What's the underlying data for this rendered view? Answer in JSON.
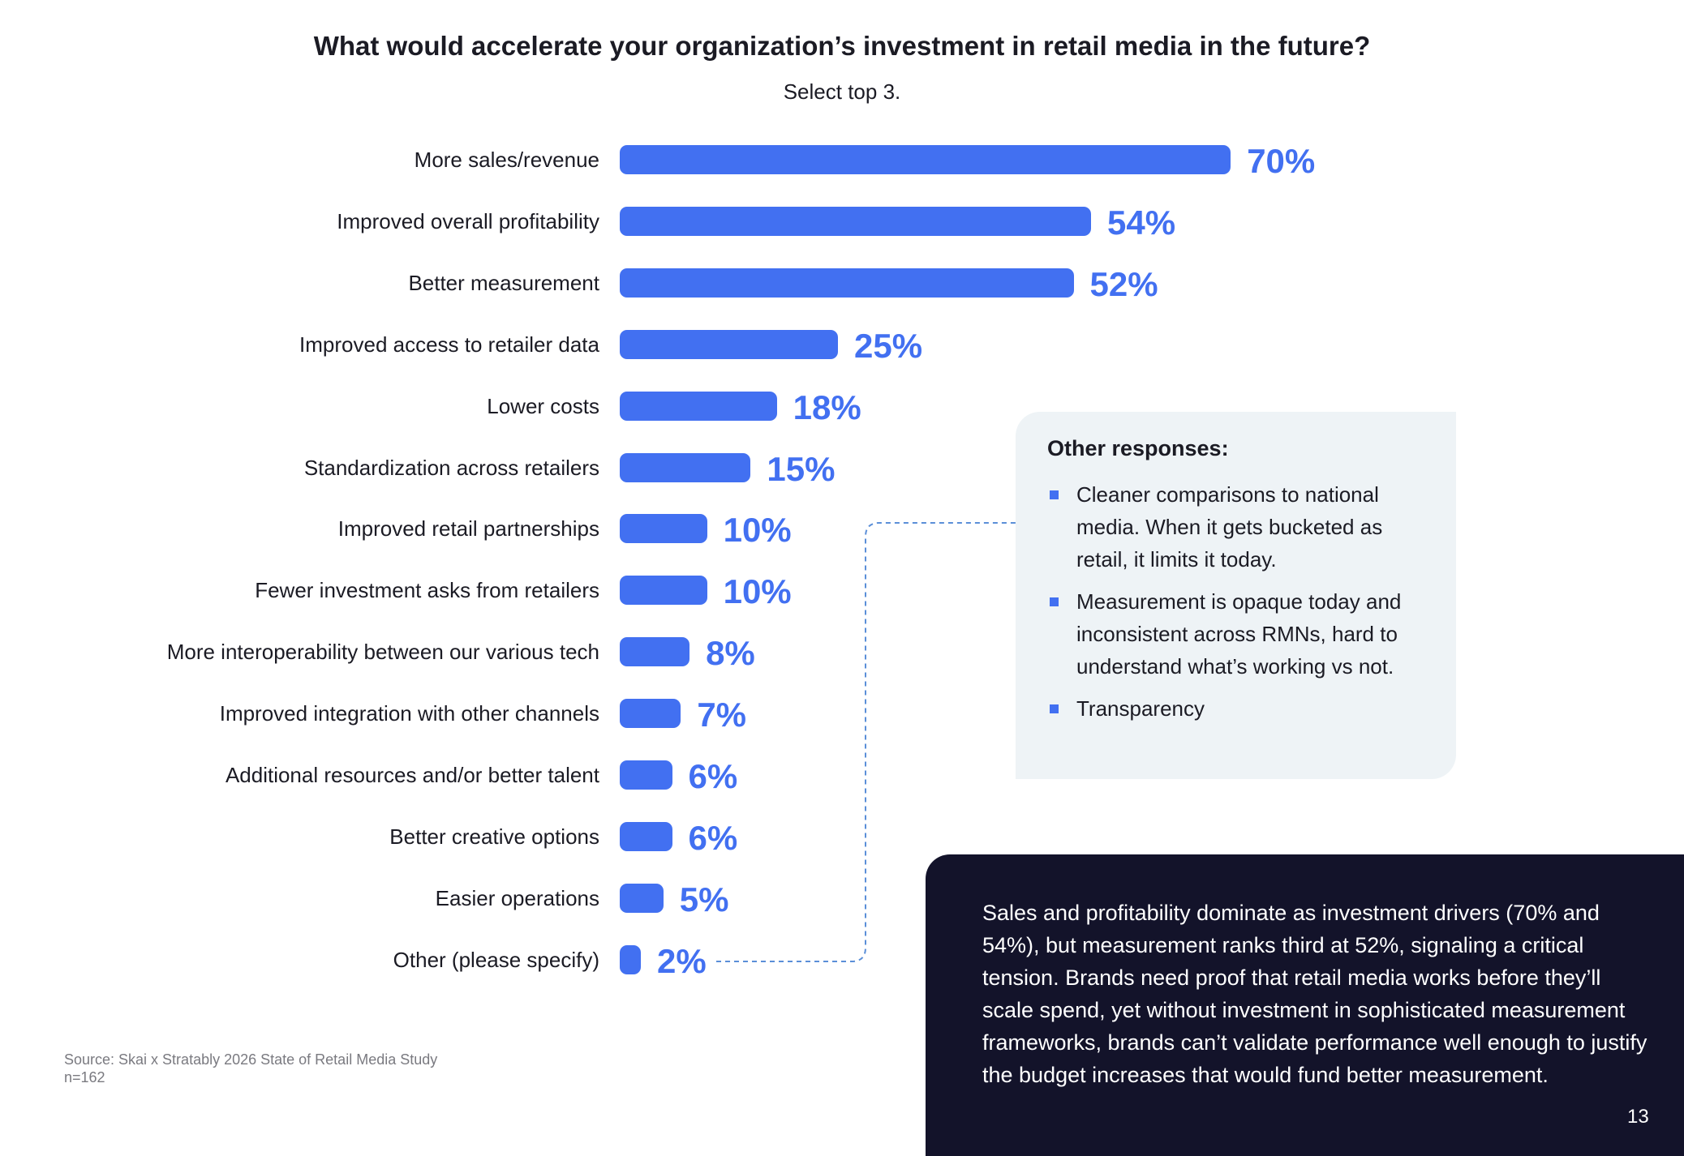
{
  "chart_data": {
    "type": "bar",
    "orientation": "horizontal",
    "title": "What would accelerate your organization’s investment in retail media in the future?",
    "subtitle": "Select top 3.",
    "categories": [
      "More sales/revenue",
      "Improved overall profitability",
      "Better measurement",
      "Improved access to retailer data",
      "Lower costs",
      "Standardization across retailers",
      "Improved retail partnerships",
      "Fewer investment asks from retailers",
      "More interoperability between our various tech",
      "Improved integration with other channels",
      "Additional resources and/or better talent",
      "Better creative options",
      "Easier operations",
      "Other (please specify)"
    ],
    "values": [
      70,
      54,
      52,
      25,
      18,
      15,
      10,
      10,
      8,
      7,
      6,
      6,
      5,
      2
    ],
    "value_labels": [
      "70%",
      "54%",
      "52%",
      "25%",
      "18%",
      "15%",
      "10%",
      "10%",
      "8%",
      "7%",
      "6%",
      "6%",
      "5%",
      "2%"
    ],
    "xlim": [
      0,
      100
    ],
    "unit": "%",
    "bar_color": "#4270f1"
  },
  "callout": {
    "heading": "Other responses:",
    "items": [
      "Cleaner comparisons to national media. When it gets bucketed as retail, it limits it today.",
      "Measurement is opaque today and inconsistent across RMNs, hard to understand what’s working vs not.",
      "Transparency"
    ]
  },
  "insight": "Sales and profitability dominate as investment drivers (70% and 54%), but measurement ranks third at 52%, signaling a critical tension. Brands need proof that retail media works before they’ll scale spend, yet without investment in sophisticated measurement frameworks, brands can’t validate performance well enough to justify the budget increases that would fund better measurement.",
  "source": "Source: Skai x Stratably 2026 State of Retail Media Study",
  "sample": "n=162",
  "page_number": "13"
}
